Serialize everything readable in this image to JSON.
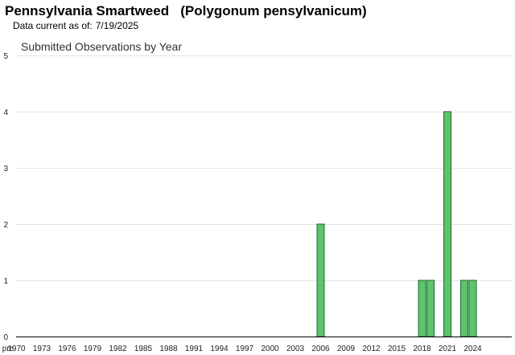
{
  "header": {
    "species_title": "Pennsylvania Smartweed   (Polygonum pensylvanicum)",
    "data_current_label": "Data current as of:",
    "data_current_date": "7/19/2025"
  },
  "colors": {
    "bar_fill": "#5cc46c",
    "bar_stroke": "#1f6b2c",
    "grid": "#e4e4e4",
    "axis": "#000000"
  },
  "chart_data": {
    "type": "bar",
    "title": "Submitted Observations by Year",
    "xlabel": "",
    "ylabel": "",
    "ylim": [
      0,
      5
    ],
    "yticks": [
      0,
      1,
      2,
      3,
      4,
      5
    ],
    "grid": true,
    "categories": [
      "pre",
      "1970",
      "1971",
      "1972",
      "1973",
      "1974",
      "1975",
      "1976",
      "1977",
      "1978",
      "1979",
      "1980",
      "1981",
      "1982",
      "1983",
      "1984",
      "1985",
      "1986",
      "1987",
      "1988",
      "1989",
      "1990",
      "1991",
      "1992",
      "1993",
      "1994",
      "1995",
      "1996",
      "1997",
      "1998",
      "1999",
      "2000",
      "2001",
      "2002",
      "2003",
      "2004",
      "2005",
      "2006",
      "2007",
      "2008",
      "2009",
      "2010",
      "2011",
      "2012",
      "2013",
      "2014",
      "2015",
      "2016",
      "2017",
      "2018",
      "2019",
      "2020",
      "2021",
      "2022",
      "2023",
      "2024",
      "2025"
    ],
    "x_tick_labels": [
      "pre",
      "1970",
      "1973",
      "1976",
      "1979",
      "1982",
      "1985",
      "1988",
      "1991",
      "1994",
      "1997",
      "2000",
      "2003",
      "2006",
      "2009",
      "2012",
      "2015",
      "2018",
      "2021",
      "2024"
    ],
    "values": [
      0,
      0,
      0,
      0,
      0,
      0,
      0,
      0,
      0,
      0,
      0,
      0,
      0,
      0,
      0,
      0,
      0,
      0,
      0,
      0,
      0,
      0,
      0,
      0,
      0,
      0,
      0,
      0,
      0,
      0,
      0,
      0,
      0,
      0,
      0,
      0,
      0,
      2,
      0,
      0,
      0,
      0,
      0,
      0,
      0,
      0,
      0,
      0,
      0,
      1,
      1,
      0,
      4,
      0,
      1,
      1,
      0
    ]
  }
}
